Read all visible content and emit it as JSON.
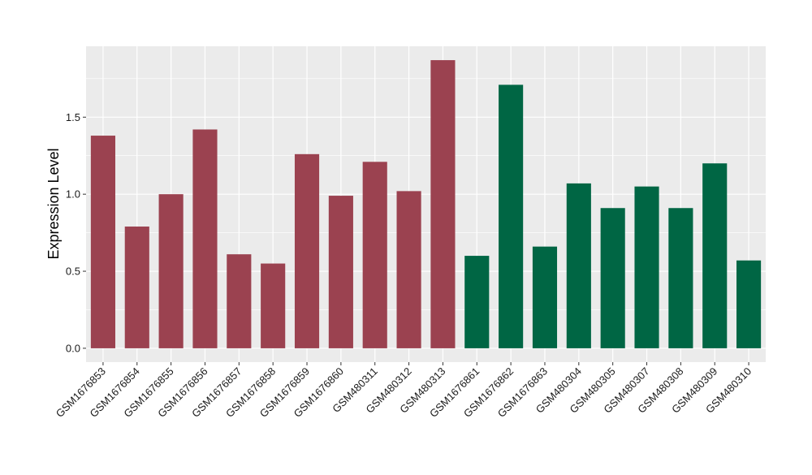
{
  "chart_data": {
    "type": "bar",
    "title": "",
    "xlabel": "",
    "ylabel": "Expression Level",
    "ylim": [
      -0.09,
      1.96
    ],
    "yticks": [
      0.0,
      0.5,
      1.0,
      1.5
    ],
    "ytick_labels": [
      "0.0",
      "0.5",
      "1.0",
      "1.5"
    ],
    "grid": true,
    "legend": "none",
    "background": "#EBEBEB",
    "gridline_color": "#FFFFFF",
    "categories": [
      "GSM1676853",
      "GSM1676854",
      "GSM1676855",
      "GSM1676856",
      "GSM1676857",
      "GSM1676858",
      "GSM1676859",
      "GSM1676860",
      "GSM480311",
      "GSM480312",
      "GSM480313",
      "GSM1676861",
      "GSM1676862",
      "GSM1676863",
      "GSM480304",
      "GSM480305",
      "GSM480307",
      "GSM480308",
      "GSM480309",
      "GSM480310"
    ],
    "values": [
      1.38,
      0.79,
      1.0,
      1.42,
      0.61,
      0.55,
      1.26,
      0.99,
      1.21,
      1.02,
      1.87,
      0.6,
      1.71,
      0.66,
      1.07,
      0.91,
      1.05,
      0.91,
      1.2,
      0.57
    ],
    "colors": [
      "#9B4250",
      "#9B4250",
      "#9B4250",
      "#9B4250",
      "#9B4250",
      "#9B4250",
      "#9B4250",
      "#9B4250",
      "#9B4250",
      "#9B4250",
      "#9B4250",
      "#006644",
      "#006644",
      "#006644",
      "#006644",
      "#006644",
      "#006644",
      "#006644",
      "#006644",
      "#006644"
    ]
  }
}
